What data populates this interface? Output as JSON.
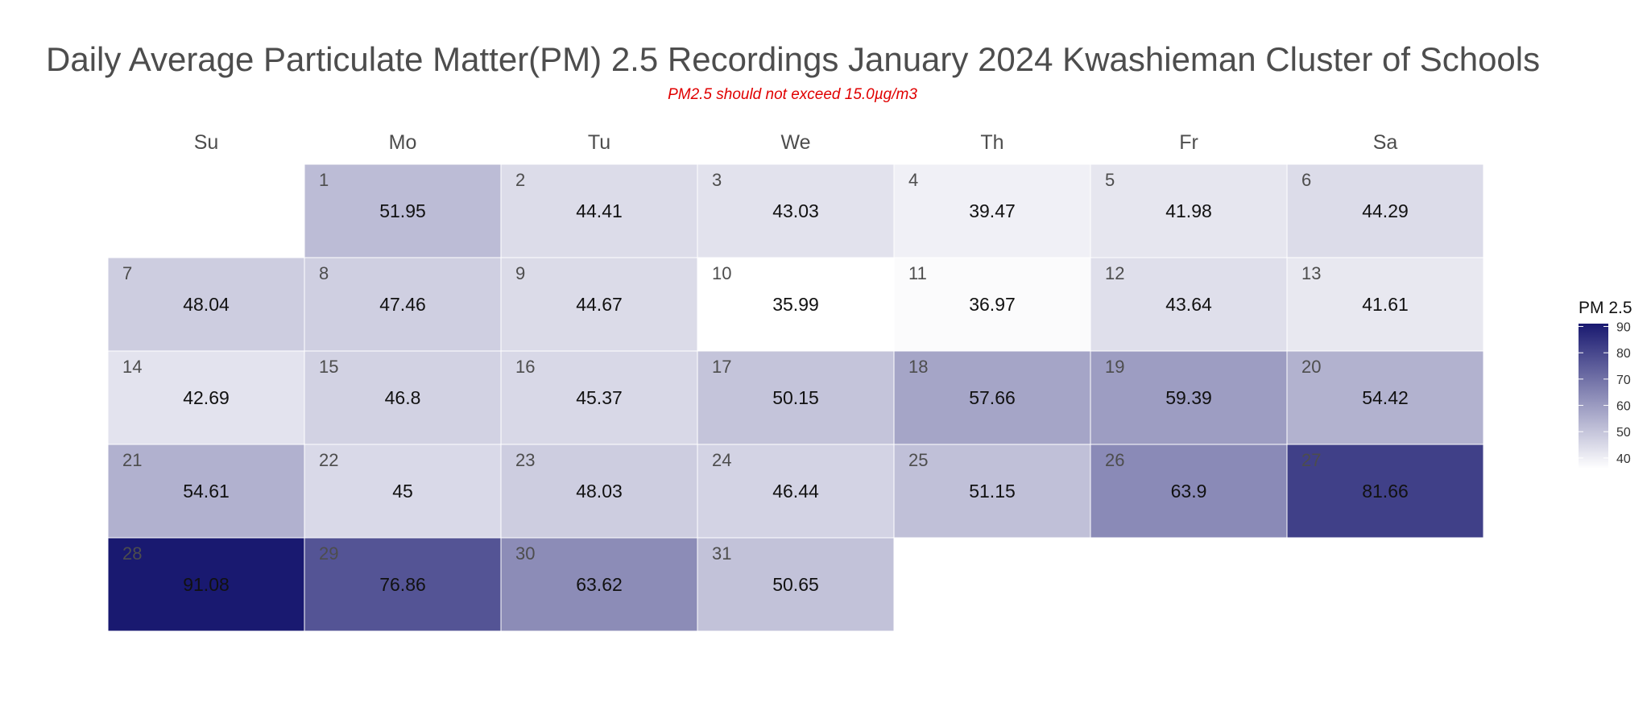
{
  "title": "Daily Average Particulate Matter(PM) 2.5 Recordings January 2024 Kwashieman Cluster of Schools",
  "subtitle": "PM2.5 should not exceed 15.0µg/m3",
  "chart_data": {
    "type": "heatmap",
    "calendar": "January 2024",
    "weekdays": [
      "Su",
      "Mo",
      "Tu",
      "We",
      "Th",
      "Fr",
      "Sa"
    ],
    "first_weekday_index": 1,
    "days": [
      1,
      2,
      3,
      4,
      5,
      6,
      7,
      8,
      9,
      10,
      11,
      12,
      13,
      14,
      15,
      16,
      17,
      18,
      19,
      20,
      21,
      22,
      23,
      24,
      25,
      26,
      27,
      28,
      29,
      30,
      31
    ],
    "value_labels": [
      "51.95",
      "44.41",
      "43.03",
      "39.47",
      "41.98",
      "44.29",
      "48.04",
      "47.46",
      "44.67",
      "35.99",
      "36.97",
      "43.64",
      "41.61",
      "42.69",
      "46.8",
      "45.37",
      "50.15",
      "57.66",
      "59.39",
      "54.42",
      "54.61",
      "45",
      "48.03",
      "46.44",
      "51.15",
      "63.9",
      "81.66",
      "91.08",
      "76.86",
      "63.62",
      "50.65"
    ],
    "values": [
      51.95,
      44.41,
      43.03,
      39.47,
      41.98,
      44.29,
      48.04,
      47.46,
      44.67,
      35.99,
      36.97,
      43.64,
      41.61,
      42.69,
      46.8,
      45.37,
      50.15,
      57.66,
      59.39,
      54.42,
      54.61,
      45,
      48.03,
      46.44,
      51.15,
      63.9,
      81.66,
      91.08,
      76.86,
      63.62,
      50.65
    ],
    "legend": {
      "title": "PM 2.5",
      "ticks": [
        40,
        50,
        60,
        70,
        80,
        90
      ],
      "range": [
        35.99,
        91.08
      ],
      "low_color": "#ffffff",
      "high_color": "#191970",
      "placement": "right"
    }
  }
}
